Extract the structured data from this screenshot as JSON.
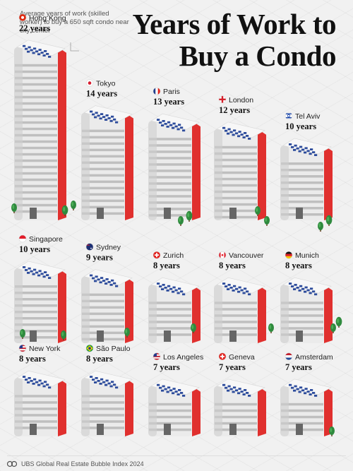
{
  "header": {
    "subtitle": "Average years of work (skilled worker) to buy a 650 sqft condo near city center",
    "title": "Years of Work to Buy a Condo"
  },
  "footer": {
    "source": "UBS Global Real Estate Bubble Index 2024"
  },
  "colors": {
    "building_light": "#ebebeb",
    "building_shade": "#9a9a9a",
    "accent_red": "#e0302e",
    "window_blue": "#2d4c9c",
    "tree_green": "#2f8a3e"
  },
  "chart_data": {
    "type": "bar",
    "title": "Years of Work to Buy a Condo",
    "subtitle": "Average years of work (skilled worker) to buy a 650 sqft condo near city center",
    "unit": "years",
    "categories": [
      "Hong Kong",
      "Tokyo",
      "Paris",
      "London",
      "Tel Aviv",
      "Singapore",
      "Sydney",
      "Zurich",
      "Vancouver",
      "Munich",
      "New York",
      "São Paulo",
      "Los Angeles",
      "Geneva",
      "Amsterdam"
    ],
    "values": [
      22,
      14,
      13,
      12,
      10,
      10,
      9,
      8,
      8,
      8,
      8,
      8,
      7,
      7,
      7
    ],
    "value_labels": [
      "22 years",
      "14 years",
      "13 years",
      "12 years",
      "10 years",
      "10 years",
      "9 years",
      "8 years",
      "8 years",
      "8 years",
      "8 years",
      "8 years",
      "7 years",
      "7 years",
      "7 years"
    ],
    "flags": [
      "hong-kong-flag",
      "japan-flag",
      "france-flag",
      "uk-flag",
      "israel-flag",
      "singapore-flag",
      "australia-flag",
      "switzerland-flag",
      "canada-flag",
      "germany-flag",
      "usa-flag",
      "brazil-flag",
      "usa-flag",
      "switzerland-flag",
      "netherlands-flag"
    ],
    "layout": "grid 5 columns x 3 rows, building height proportional to years"
  }
}
